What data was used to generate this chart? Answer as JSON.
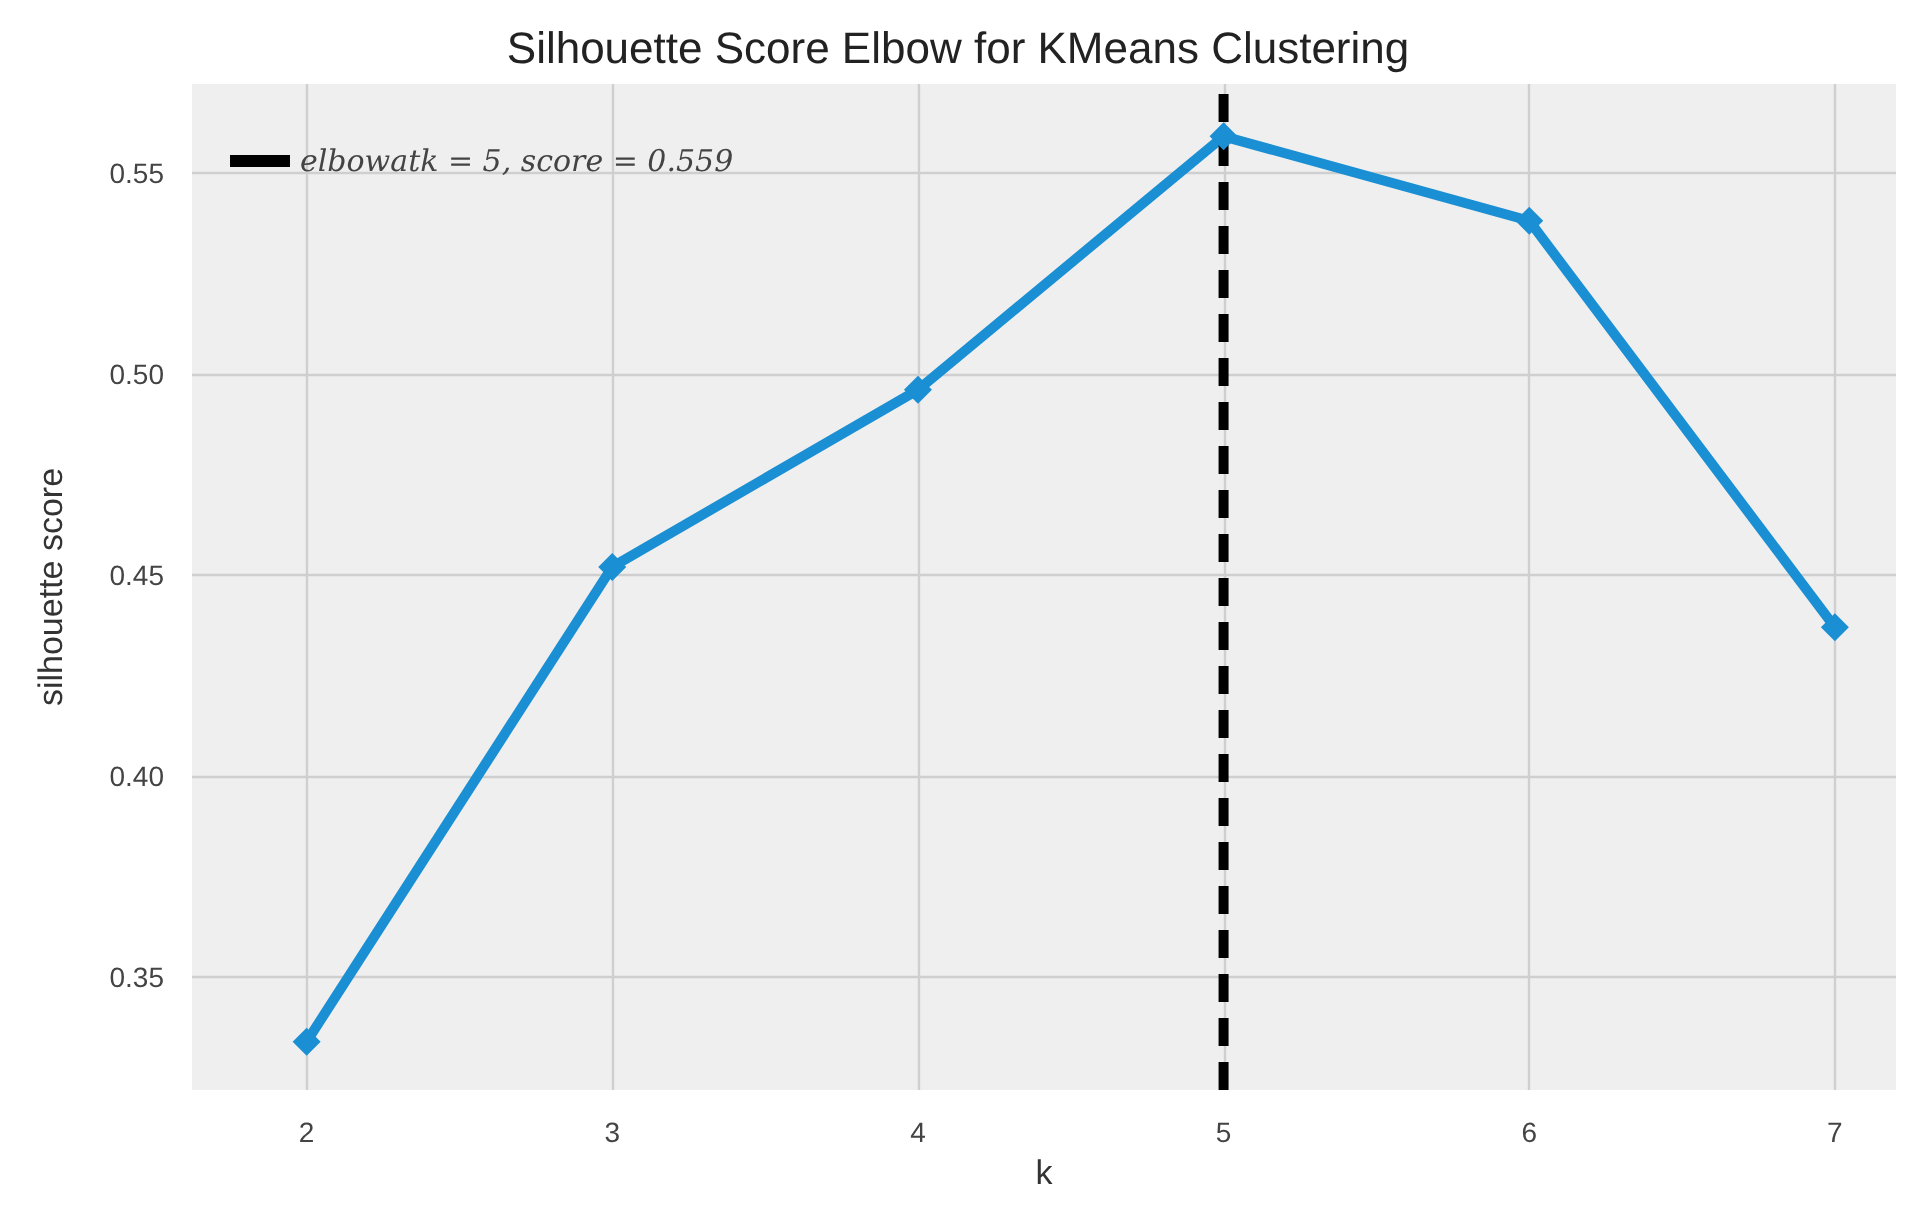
{
  "chart_data": {
    "type": "line",
    "title": "Silhouette Score Elbow for KMeans Clustering",
    "xlabel": "k",
    "ylabel": "silhouette score",
    "x": [
      2,
      3,
      4,
      5,
      6,
      7
    ],
    "series": [
      {
        "color": "#1a8fd3",
        "values": [
          0.334,
          0.452,
          0.496,
          0.559,
          0.538,
          0.437
        ]
      },
      {
        "name": "elbowatk = 5, score = 0.559",
        "color": "#000000",
        "x": [
          5,
          5
        ],
        "values": [
          0.322,
          0.572
        ],
        "line_style": "dashed",
        "marker": "none"
      }
    ],
    "xlim": [
      1.625,
      7.2
    ],
    "xticks": [
      2,
      3,
      4,
      5,
      6,
      7
    ],
    "ylim": [
      0.322,
      0.572
    ],
    "yticks": [
      0.35,
      {
        "value": 0.4,
        "label": "0.40"
      },
      0.45,
      {
        "value": 0.5,
        "label": "0.50"
      },
      0.55
    ],
    "marker": "diamond",
    "line_style": "solid",
    "grid": true,
    "legend": "top left"
  }
}
